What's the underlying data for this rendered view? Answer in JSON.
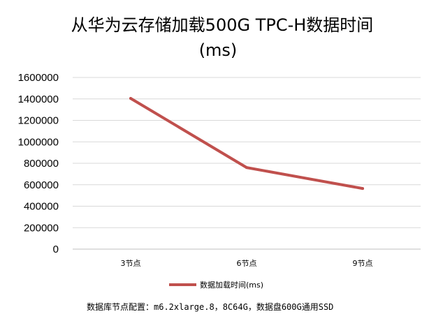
{
  "chart_data": {
    "type": "line",
    "title_line1": "从华为云存储加载500G TPC-H数据时间",
    "title_line2": "(ms)",
    "categories": [
      "3节点",
      "6节点",
      "9节点"
    ],
    "series": [
      {
        "name": "数据加载时间(ms)",
        "values": [
          1405000,
          760000,
          565000
        ],
        "color": "#c0504d"
      }
    ],
    "yticks": [
      "0",
      "200000",
      "400000",
      "600000",
      "800000",
      "1000000",
      "1200000",
      "1400000",
      "1600000"
    ],
    "ylim": [
      0,
      1600000
    ],
    "grid": true,
    "legend_position": "bottom",
    "gridline_color": "#d9d9d9"
  },
  "footnote": "数据库节点配置：m6.2xlarge.8，8C64G，数据盘600G通用SSD"
}
